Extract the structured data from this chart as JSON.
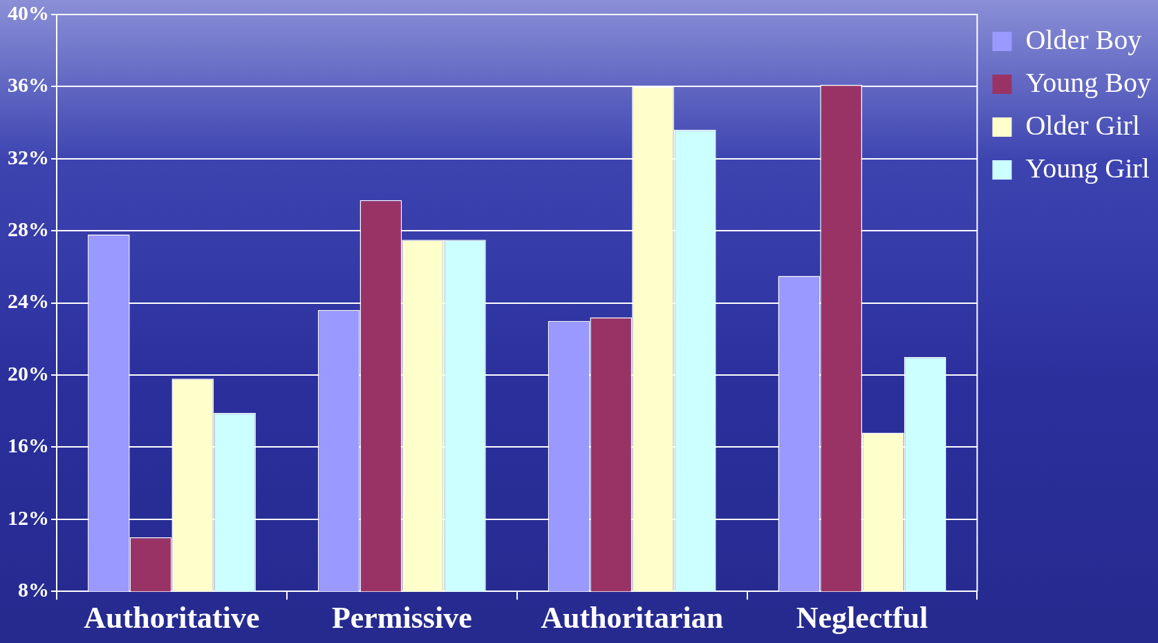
{
  "chart_data": {
    "type": "bar",
    "categories": [
      "Authoritative",
      "Permissive",
      "Authoritarian",
      "Neglectful"
    ],
    "series": [
      {
        "name": "Older Boy",
        "color": "#9999ff",
        "values": [
          27.8,
          23.6,
          23.0,
          25.5
        ]
      },
      {
        "name": "Young Boy",
        "color": "#993366",
        "values": [
          11.0,
          29.7,
          23.2,
          36.1
        ]
      },
      {
        "name": "Older Girl",
        "color": "#ffffcc",
        "values": [
          19.8,
          27.5,
          36.0,
          16.8
        ]
      },
      {
        "name": "Young Girl",
        "color": "#ccffff",
        "values": [
          17.9,
          27.5,
          33.6,
          21.0
        ]
      }
    ],
    "ylim": [
      8,
      40
    ],
    "yticks": [
      {
        "value": 8,
        "label": "8%"
      },
      {
        "value": 12,
        "label": "12%"
      },
      {
        "value": 16,
        "label": "16%"
      },
      {
        "value": 20,
        "label": "20%"
      },
      {
        "value": 24,
        "label": "24%"
      },
      {
        "value": 28,
        "label": "28%"
      },
      {
        "value": 32,
        "label": "32%"
      },
      {
        "value": 36,
        "label": "36%"
      },
      {
        "value": 40,
        "label": "40%"
      }
    ],
    "grid": "y",
    "legend": "top right"
  }
}
